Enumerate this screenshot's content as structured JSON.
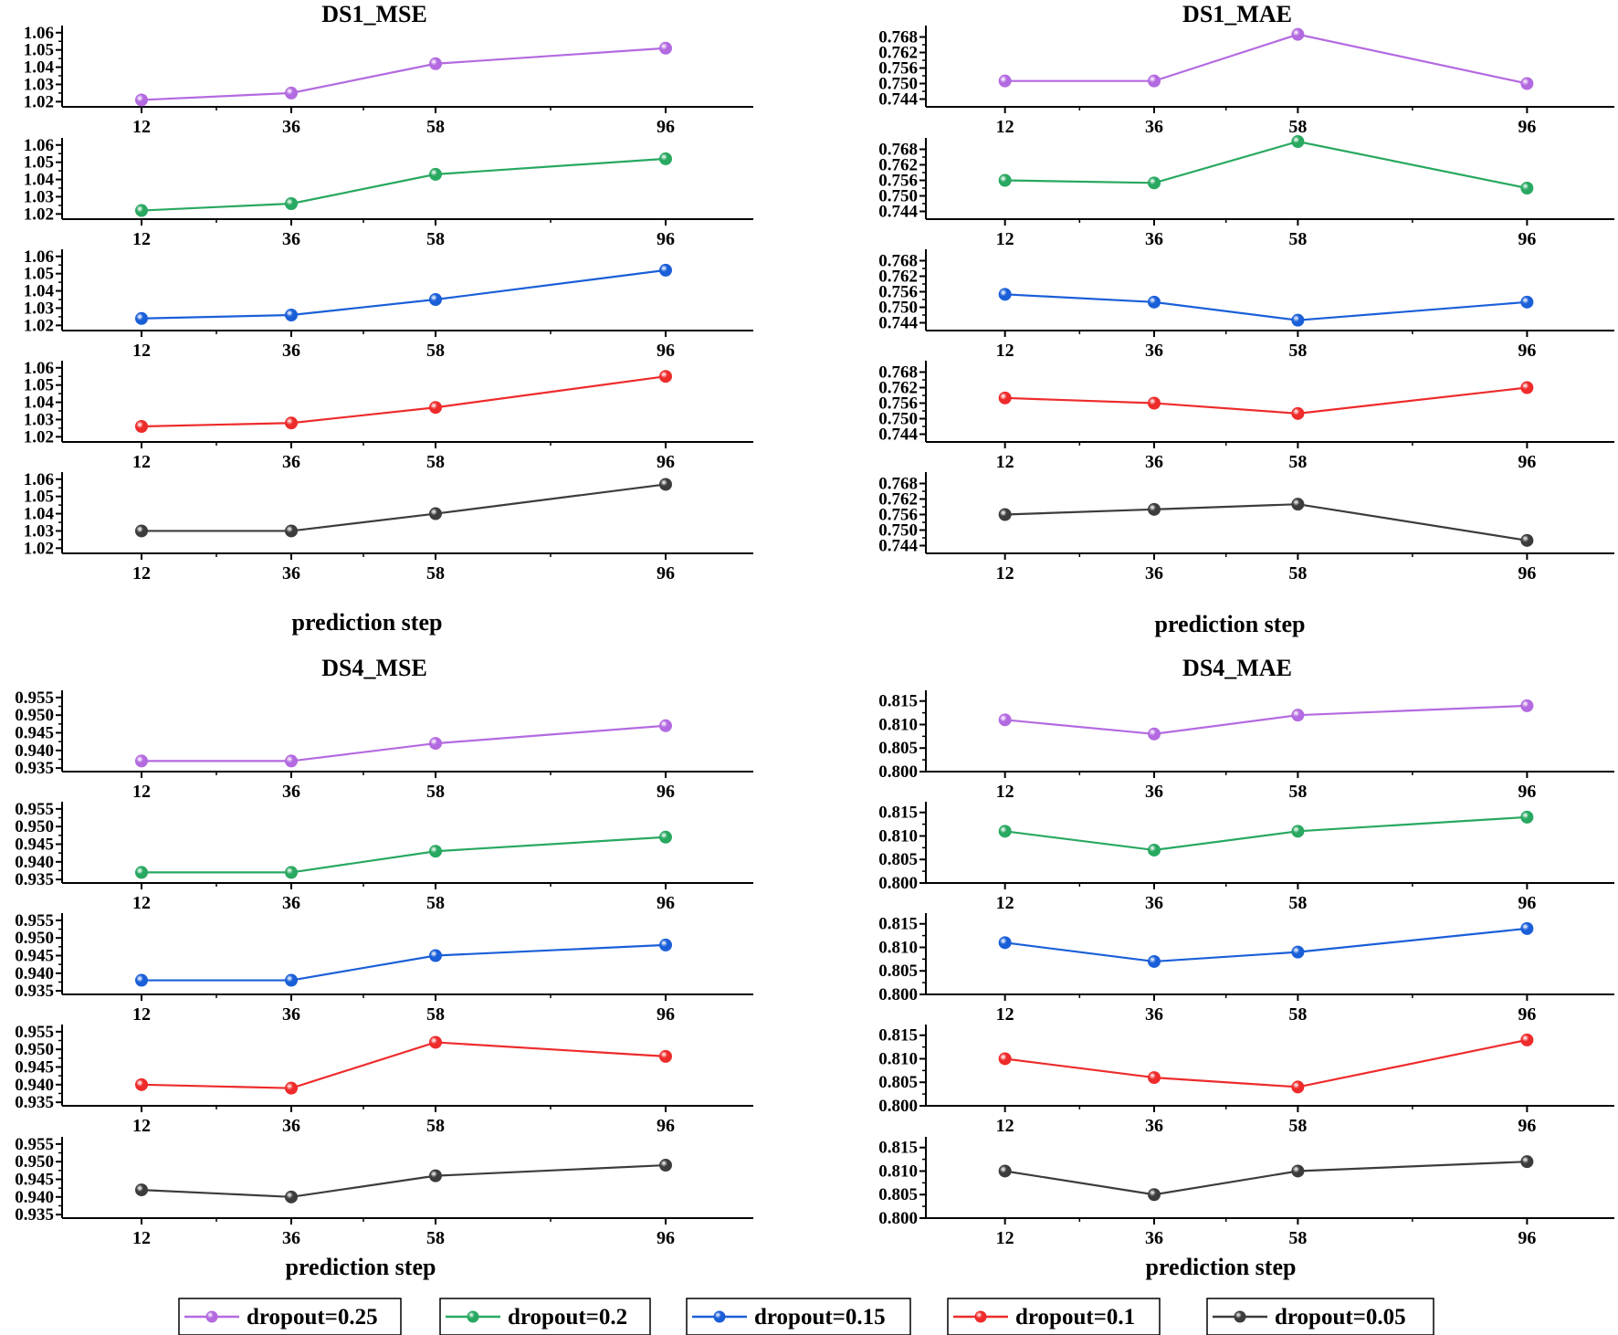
{
  "legend": [
    {
      "label": "dropout=0.25",
      "color": "#b36ae0"
    },
    {
      "label": "dropout=0.2",
      "color": "#28a860"
    },
    {
      "label": "dropout=0.15",
      "color": "#1a5fd8"
    },
    {
      "label": "dropout=0.1",
      "color": "#ee2b2b"
    },
    {
      "label": "dropout=0.05",
      "color": "#3c3c3c"
    }
  ],
  "chart_data": [
    {
      "type": "line",
      "title": "DS1_MSE",
      "xlabel": "prediction step",
      "ylabel": "",
      "categories": [
        "12",
        "36",
        "58",
        "96"
      ],
      "yticks": [
        "1.02",
        "1.03",
        "1.04",
        "1.05",
        "1.06"
      ],
      "ylim": [
        1.017,
        1.062
      ],
      "series": [
        {
          "name": "dropout=0.25",
          "color": "#b36ae0",
          "values": [
            1.021,
            1.025,
            1.042,
            1.051
          ]
        },
        {
          "name": "dropout=0.2",
          "color": "#28a860",
          "values": [
            1.022,
            1.026,
            1.043,
            1.052
          ]
        },
        {
          "name": "dropout=0.15",
          "color": "#1a5fd8",
          "values": [
            1.024,
            1.026,
            1.035,
            1.052
          ]
        },
        {
          "name": "dropout=0.1",
          "color": "#ee2b2b",
          "values": [
            1.026,
            1.028,
            1.037,
            1.055
          ]
        },
        {
          "name": "dropout=0.05",
          "color": "#3c3c3c",
          "values": [
            1.03,
            1.03,
            1.04,
            1.057
          ]
        }
      ]
    },
    {
      "type": "line",
      "title": "DS1_MAE",
      "xlabel": "prediction step",
      "ylabel": "",
      "categories": [
        "12",
        "36",
        "58",
        "96"
      ],
      "yticks": [
        "0.744",
        "0.750",
        "0.756",
        "0.762",
        "0.768"
      ],
      "ylim": [
        0.741,
        0.771
      ],
      "series": [
        {
          "name": "dropout=0.25",
          "color": "#b36ae0",
          "values": [
            0.751,
            0.751,
            0.769,
            0.75
          ]
        },
        {
          "name": "dropout=0.2",
          "color": "#28a860",
          "values": [
            0.756,
            0.755,
            0.771,
            0.753
          ]
        },
        {
          "name": "dropout=0.15",
          "color": "#1a5fd8",
          "values": [
            0.755,
            0.752,
            0.745,
            0.752
          ]
        },
        {
          "name": "dropout=0.1",
          "color": "#ee2b2b",
          "values": [
            0.758,
            0.756,
            0.752,
            0.762
          ]
        },
        {
          "name": "dropout=0.05",
          "color": "#3c3c3c",
          "values": [
            0.756,
            0.758,
            0.76,
            0.746
          ]
        }
      ]
    },
    {
      "type": "line",
      "title": "DS4_MSE",
      "xlabel": "prediction step",
      "ylabel": "",
      "categories": [
        "12",
        "36",
        "58",
        "96"
      ],
      "yticks": [
        "0.935",
        "0.940",
        "0.945",
        "0.950",
        "0.955"
      ],
      "ylim": [
        0.934,
        0.956
      ],
      "series": [
        {
          "name": "dropout=0.25",
          "color": "#b36ae0",
          "values": [
            0.937,
            0.937,
            0.942,
            0.947
          ]
        },
        {
          "name": "dropout=0.2",
          "color": "#28a860",
          "values": [
            0.937,
            0.937,
            0.943,
            0.947
          ]
        },
        {
          "name": "dropout=0.15",
          "color": "#1a5fd8",
          "values": [
            0.938,
            0.938,
            0.945,
            0.948
          ]
        },
        {
          "name": "dropout=0.1",
          "color": "#ee2b2b",
          "values": [
            0.94,
            0.939,
            0.952,
            0.948
          ]
        },
        {
          "name": "dropout=0.05",
          "color": "#3c3c3c",
          "values": [
            0.942,
            0.94,
            0.946,
            0.949
          ]
        }
      ]
    },
    {
      "type": "line",
      "title": "DS4_MAE",
      "xlabel": "prediction step",
      "ylabel": "",
      "categories": [
        "12",
        "36",
        "58",
        "96"
      ],
      "yticks": [
        "0.800",
        "0.805",
        "0.810",
        "0.815"
      ],
      "ylim": [
        0.8,
        0.8165
      ],
      "series": [
        {
          "name": "dropout=0.25",
          "color": "#b36ae0",
          "values": [
            0.811,
            0.808,
            0.812,
            0.814
          ]
        },
        {
          "name": "dropout=0.2",
          "color": "#28a860",
          "values": [
            0.811,
            0.807,
            0.811,
            0.814
          ]
        },
        {
          "name": "dropout=0.15",
          "color": "#1a5fd8",
          "values": [
            0.811,
            0.807,
            0.809,
            0.814
          ]
        },
        {
          "name": "dropout=0.1",
          "color": "#ee2b2b",
          "values": [
            0.81,
            0.806,
            0.804,
            0.814
          ]
        },
        {
          "name": "dropout=0.05",
          "color": "#3c3c3c",
          "values": [
            0.81,
            0.805,
            0.81,
            0.812
          ]
        }
      ]
    }
  ]
}
